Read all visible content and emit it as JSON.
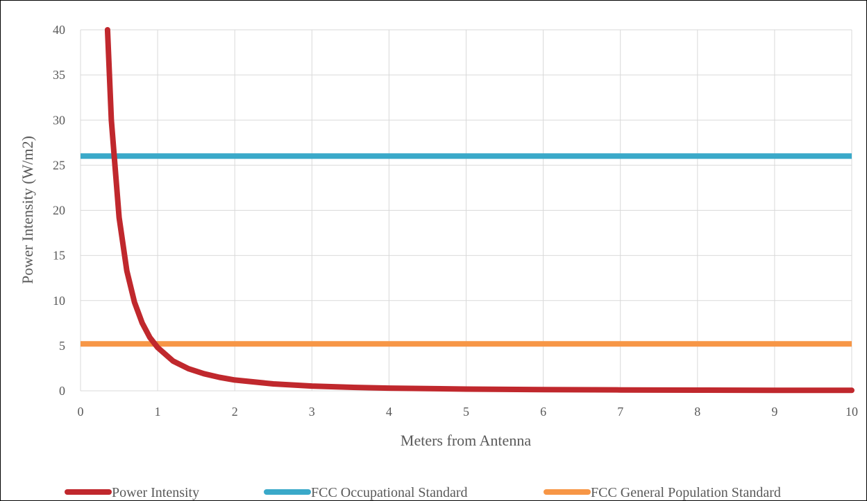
{
  "chart_data": {
    "type": "line",
    "title": "",
    "xlabel": "Meters from Antenna",
    "ylabel": "Power Intensity  (W/m2)",
    "xlim": [
      0,
      10
    ],
    "ylim": [
      0,
      40
    ],
    "x_ticks": [
      "0",
      "1",
      "2",
      "3",
      "4",
      "5",
      "6",
      "7",
      "8",
      "9",
      "10"
    ],
    "y_ticks": [
      "0",
      "5",
      "10",
      "15",
      "20",
      "25",
      "30",
      "35",
      "40"
    ],
    "grid": true,
    "legend_position": "bottom",
    "series": [
      {
        "name": "Power Intensity",
        "color": "#c0282d",
        "points": [
          [
            0.35,
            40
          ],
          [
            0.4,
            30
          ],
          [
            0.5,
            19.2
          ],
          [
            0.6,
            13.3
          ],
          [
            0.7,
            9.8
          ],
          [
            0.8,
            7.5
          ],
          [
            0.9,
            5.9
          ],
          [
            1.0,
            4.8
          ],
          [
            1.2,
            3.3
          ],
          [
            1.4,
            2.45
          ],
          [
            1.6,
            1.9
          ],
          [
            1.8,
            1.5
          ],
          [
            2.0,
            1.2
          ],
          [
            2.5,
            0.77
          ],
          [
            3.0,
            0.53
          ],
          [
            3.5,
            0.39
          ],
          [
            4.0,
            0.3
          ],
          [
            5.0,
            0.19
          ],
          [
            6.0,
            0.13
          ],
          [
            7.0,
            0.1
          ],
          [
            8.0,
            0.075
          ],
          [
            9.0,
            0.06
          ],
          [
            10.0,
            0.05
          ]
        ]
      },
      {
        "name": "FCC Occupational Standard",
        "color": "#3aa9c9",
        "points": [
          [
            0,
            26
          ],
          [
            10,
            26
          ]
        ]
      },
      {
        "name": "FCC General Population Standard",
        "color": "#f79646",
        "points": [
          [
            0,
            5.2
          ],
          [
            10,
            5.2
          ]
        ]
      }
    ]
  }
}
